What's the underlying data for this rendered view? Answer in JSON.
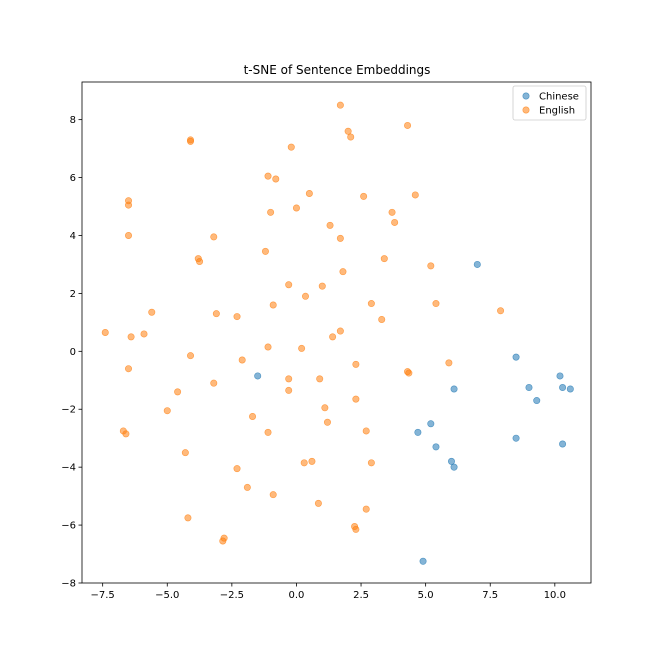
{
  "chart_data": {
    "type": "scatter",
    "title": "t-SNE of Sentence Embeddings",
    "xlabel": "",
    "ylabel": "",
    "xlim": [
      -8.3,
      11.4
    ],
    "ylim": [
      -8.0,
      9.3
    ],
    "xticks": [
      -7.5,
      -5.0,
      -2.5,
      0.0,
      2.5,
      5.0,
      7.5,
      10.0
    ],
    "xtick_labels": [
      "−7.5",
      "−5.0",
      "−2.5",
      "0.0",
      "2.5",
      "5.0",
      "7.5",
      "10.0"
    ],
    "yticks": [
      -8,
      -6,
      -4,
      -2,
      0,
      2,
      4,
      6,
      8
    ],
    "ytick_labels": [
      "−8",
      "−6",
      "−4",
      "−2",
      "0",
      "2",
      "4",
      "6",
      "8"
    ],
    "grid": false,
    "legend_position": "top-right",
    "series": [
      {
        "name": "Chinese",
        "color": "#1f77b4",
        "points": [
          [
            7.0,
            3.0
          ],
          [
            8.5,
            -0.2
          ],
          [
            10.2,
            -0.85
          ],
          [
            9.0,
            -1.25
          ],
          [
            10.3,
            -1.25
          ],
          [
            10.6,
            -1.3
          ],
          [
            9.3,
            -1.7
          ],
          [
            6.1,
            -1.3
          ],
          [
            5.2,
            -2.5
          ],
          [
            4.7,
            -2.8
          ],
          [
            8.5,
            -3.0
          ],
          [
            10.3,
            -3.2
          ],
          [
            5.4,
            -3.3
          ],
          [
            6.0,
            -3.8
          ],
          [
            6.1,
            -4.0
          ],
          [
            -1.5,
            -0.85
          ],
          [
            4.9,
            -7.25
          ]
        ]
      },
      {
        "name": "English",
        "color": "#ff7f0e",
        "points": [
          [
            1.7,
            8.5
          ],
          [
            2.0,
            7.6
          ],
          [
            2.1,
            7.4
          ],
          [
            4.3,
            7.8
          ],
          [
            -4.1,
            7.3
          ],
          [
            -4.1,
            7.25
          ],
          [
            -0.2,
            7.05
          ],
          [
            -1.1,
            6.05
          ],
          [
            -0.8,
            5.95
          ],
          [
            0.5,
            5.45
          ],
          [
            4.6,
            5.4
          ],
          [
            2.6,
            5.35
          ],
          [
            -6.5,
            5.2
          ],
          [
            -6.5,
            5.05
          ],
          [
            0.0,
            4.95
          ],
          [
            -1.0,
            4.8
          ],
          [
            3.7,
            4.8
          ],
          [
            3.8,
            4.45
          ],
          [
            1.3,
            4.35
          ],
          [
            -6.5,
            4.0
          ],
          [
            -3.2,
            3.95
          ],
          [
            1.7,
            3.9
          ],
          [
            -1.2,
            3.45
          ],
          [
            3.4,
            3.2
          ],
          [
            -3.8,
            3.2
          ],
          [
            -3.75,
            3.1
          ],
          [
            5.2,
            2.95
          ],
          [
            1.8,
            2.75
          ],
          [
            -0.3,
            2.3
          ],
          [
            1.0,
            2.25
          ],
          [
            0.35,
            1.9
          ],
          [
            2.9,
            1.65
          ],
          [
            5.4,
            1.65
          ],
          [
            -0.9,
            1.6
          ],
          [
            7.9,
            1.4
          ],
          [
            -5.6,
            1.35
          ],
          [
            -3.1,
            1.3
          ],
          [
            -2.3,
            1.2
          ],
          [
            3.3,
            1.1
          ],
          [
            1.7,
            0.7
          ],
          [
            -7.4,
            0.65
          ],
          [
            -5.9,
            0.6
          ],
          [
            -6.4,
            0.5
          ],
          [
            1.4,
            0.5
          ],
          [
            -1.1,
            0.15
          ],
          [
            0.2,
            0.1
          ],
          [
            -4.1,
            -0.15
          ],
          [
            -2.1,
            -0.3
          ],
          [
            5.9,
            -0.4
          ],
          [
            2.3,
            -0.45
          ],
          [
            -6.5,
            -0.6
          ],
          [
            4.3,
            -0.7
          ],
          [
            4.35,
            -0.75
          ],
          [
            -0.3,
            -0.95
          ],
          [
            0.9,
            -0.95
          ],
          [
            -3.2,
            -1.1
          ],
          [
            -4.6,
            -1.4
          ],
          [
            -0.3,
            -1.35
          ],
          [
            2.3,
            -1.65
          ],
          [
            1.1,
            -1.95
          ],
          [
            -5.0,
            -2.05
          ],
          [
            -1.7,
            -2.25
          ],
          [
            1.2,
            -2.45
          ],
          [
            -6.7,
            -2.75
          ],
          [
            -6.6,
            -2.85
          ],
          [
            -1.1,
            -2.8
          ],
          [
            2.7,
            -2.75
          ],
          [
            -4.3,
            -3.5
          ],
          [
            2.9,
            -3.85
          ],
          [
            0.6,
            -3.8
          ],
          [
            0.3,
            -3.85
          ],
          [
            -2.3,
            -4.05
          ],
          [
            -1.9,
            -4.7
          ],
          [
            -0.9,
            -4.95
          ],
          [
            0.85,
            -5.25
          ],
          [
            2.7,
            -5.45
          ],
          [
            -4.2,
            -5.75
          ],
          [
            2.25,
            -6.05
          ],
          [
            2.3,
            -6.15
          ],
          [
            -2.8,
            -6.45
          ],
          [
            -2.85,
            -6.55
          ]
        ]
      }
    ]
  }
}
